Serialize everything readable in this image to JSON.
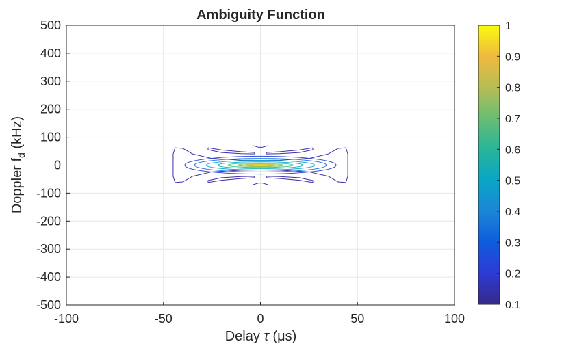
{
  "chart_data": {
    "type": "contour",
    "title": "Ambiguity Function",
    "xlabel_main": "Delay ",
    "xlabel_symbol": "τ",
    "xlabel_unit": " (μs)",
    "ylabel_main": "Doppler f",
    "ylabel_sub": "d",
    "ylabel_unit": " (kHz)",
    "xlim": [
      -100,
      100
    ],
    "ylim": [
      -500,
      500
    ],
    "xticks": [
      -100,
      -50,
      0,
      50,
      100
    ],
    "yticks": [
      -500,
      -400,
      -300,
      -200,
      -100,
      0,
      100,
      200,
      300,
      400,
      500
    ],
    "grid": true,
    "colormap": "parula",
    "colorbar": {
      "ticks": [
        "0.1",
        "0.2",
        "0.3",
        "0.4",
        "0.5",
        "0.6",
        "0.7",
        "0.8",
        "0.9",
        "1"
      ],
      "range": [
        0.1,
        1
      ],
      "stops": [
        "#352a87",
        "#2e3ad5",
        "#0f5cdd",
        "#1a86d6",
        "#0aa5c7",
        "#28b59a",
        "#68bd72",
        "#b6bd55",
        "#f0b93e",
        "#f9fb0e"
      ]
    },
    "contours": [
      {
        "level": 0.1,
        "color": "#3b2ea8",
        "paths": [
          [
            [
              -44,
              62
            ],
            [
              -40,
              60
            ],
            [
              -35,
              40
            ],
            [
              -25,
              24
            ],
            [
              -10,
              18
            ],
            [
              0,
              17
            ],
            [
              10,
              18
            ],
            [
              25,
              24
            ],
            [
              35,
              40
            ],
            [
              40,
              60
            ],
            [
              44,
              62
            ],
            [
              45,
              40
            ],
            [
              45,
              0
            ],
            [
              45,
              -40
            ],
            [
              44,
              -62
            ],
            [
              40,
              -60
            ],
            [
              35,
              -40
            ],
            [
              25,
              -24
            ],
            [
              10,
              -18
            ],
            [
              0,
              -17
            ],
            [
              -10,
              -18
            ],
            [
              -25,
              -24
            ],
            [
              -35,
              -40
            ],
            [
              -40,
              -60
            ],
            [
              -44,
              -62
            ],
            [
              -45,
              -40
            ],
            [
              -45,
              0
            ],
            [
              -45,
              40
            ],
            [
              -44,
              62
            ]
          ],
          [
            [
              -27,
              62
            ],
            [
              -20,
              54
            ],
            [
              -10,
              48
            ],
            [
              -3,
              45
            ],
            [
              -3,
              40
            ],
            [
              -10,
              41
            ],
            [
              -20,
              45
            ],
            [
              -27,
              55
            ],
            [
              -27,
              62
            ]
          ],
          [
            [
              27,
              62
            ],
            [
              20,
              54
            ],
            [
              10,
              48
            ],
            [
              3,
              45
            ],
            [
              3,
              40
            ],
            [
              10,
              41
            ],
            [
              20,
              45
            ],
            [
              27,
              55
            ],
            [
              27,
              62
            ]
          ],
          [
            [
              -27,
              -62
            ],
            [
              -20,
              -54
            ],
            [
              -10,
              -48
            ],
            [
              -3,
              -45
            ],
            [
              -3,
              -40
            ],
            [
              -10,
              -41
            ],
            [
              -20,
              -45
            ],
            [
              -27,
              -55
            ],
            [
              -27,
              -62
            ]
          ],
          [
            [
              27,
              -62
            ],
            [
              20,
              -54
            ],
            [
              10,
              -48
            ],
            [
              3,
              -45
            ],
            [
              3,
              -40
            ],
            [
              10,
              -41
            ],
            [
              20,
              -45
            ],
            [
              27,
              -55
            ],
            [
              27,
              -62
            ]
          ],
          [
            [
              -4,
              70
            ],
            [
              -1,
              64
            ],
            [
              1,
              64
            ],
            [
              4,
              70
            ]
          ],
          [
            [
              -4,
              -70
            ],
            [
              -1,
              -64
            ],
            [
              1,
              -64
            ],
            [
              4,
              -70
            ]
          ]
        ]
      },
      {
        "level": 0.2,
        "color": "#3a4fd3",
        "ellipse": [
          39,
          32
        ]
      },
      {
        "level": 0.3,
        "color": "#2a7ee0",
        "ellipse": [
          34,
          24
        ]
      },
      {
        "level": 0.4,
        "color": "#1fa3d3",
        "ellipse": [
          28,
          17
        ]
      },
      {
        "level": 0.5,
        "color": "#14b8b8",
        "ellipse": [
          22,
          12
        ]
      },
      {
        "level": 0.6,
        "color": "#3bc48a",
        "ellipse": [
          17,
          8
        ]
      },
      {
        "level": 0.7,
        "color": "#8cc45a",
        "ellipse": [
          12,
          5
        ]
      },
      {
        "level": 0.8,
        "color": "#dcbc3e",
        "ellipse": [
          8,
          3.2
        ]
      },
      {
        "level": 0.9,
        "color": "#f6d52a",
        "ellipse": [
          4.5,
          1.8
        ]
      }
    ]
  }
}
